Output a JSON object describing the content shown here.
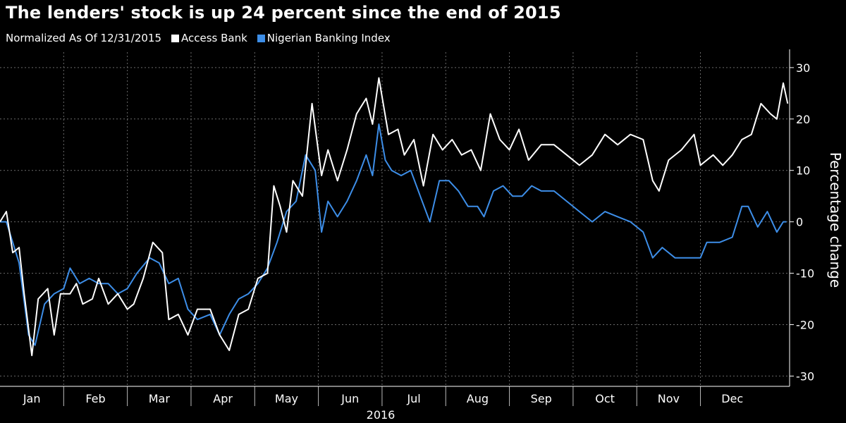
{
  "chart_data": {
    "type": "line",
    "title": "The lenders' stock is up 24 percent since the end of 2015",
    "subtitle": "Normalized As Of 12/31/2015",
    "ylabel": "Percentage change",
    "xlabel_year": "2016",
    "ylim": [
      -32,
      33
    ],
    "yticks": [
      30,
      20,
      10,
      0,
      -10,
      -20,
      -30
    ],
    "grid": true,
    "legend_position": "top-left",
    "x_unit": "month index (0 = Jan 1, 2016)",
    "months": [
      "Jan",
      "Feb",
      "Mar",
      "Apr",
      "May",
      "Jun",
      "Jul",
      "Aug",
      "Sep",
      "Oct",
      "Nov",
      "Dec"
    ],
    "series": [
      {
        "name": "Access Bank",
        "color": "#ffffff",
        "points": [
          [
            0,
            0
          ],
          [
            0.1,
            2
          ],
          [
            0.2,
            -6
          ],
          [
            0.3,
            -5
          ],
          [
            0.38,
            -14
          ],
          [
            0.5,
            -26
          ],
          [
            0.6,
            -15
          ],
          [
            0.75,
            -13
          ],
          [
            0.85,
            -22
          ],
          [
            0.95,
            -14
          ],
          [
            1.1,
            -14
          ],
          [
            1.2,
            -12
          ],
          [
            1.3,
            -16
          ],
          [
            1.45,
            -15
          ],
          [
            1.55,
            -11
          ],
          [
            1.7,
            -16
          ],
          [
            1.85,
            -14
          ],
          [
            2.0,
            -17
          ],
          [
            2.1,
            -16
          ],
          [
            2.25,
            -11
          ],
          [
            2.4,
            -4
          ],
          [
            2.55,
            -6
          ],
          [
            2.65,
            -19
          ],
          [
            2.8,
            -18
          ],
          [
            2.95,
            -22
          ],
          [
            3.1,
            -17
          ],
          [
            3.3,
            -17
          ],
          [
            3.45,
            -22
          ],
          [
            3.6,
            -25
          ],
          [
            3.75,
            -18
          ],
          [
            3.9,
            -17
          ],
          [
            4.05,
            -11
          ],
          [
            4.2,
            -10
          ],
          [
            4.3,
            7
          ],
          [
            4.4,
            3
          ],
          [
            4.5,
            -2
          ],
          [
            4.6,
            8
          ],
          [
            4.75,
            5
          ],
          [
            4.9,
            23
          ],
          [
            5.05,
            9
          ],
          [
            5.15,
            14
          ],
          [
            5.3,
            8
          ],
          [
            5.45,
            14
          ],
          [
            5.6,
            21
          ],
          [
            5.75,
            24
          ],
          [
            5.85,
            19
          ],
          [
            5.95,
            28
          ],
          [
            6.1,
            17
          ],
          [
            6.25,
            18
          ],
          [
            6.35,
            13
          ],
          [
            6.5,
            16
          ],
          [
            6.65,
            7
          ],
          [
            6.8,
            17
          ],
          [
            6.95,
            14
          ],
          [
            7.1,
            16
          ],
          [
            7.25,
            13
          ],
          [
            7.4,
            14
          ],
          [
            7.55,
            10
          ],
          [
            7.7,
            21
          ],
          [
            7.85,
            16
          ],
          [
            8.0,
            14
          ],
          [
            8.15,
            18
          ],
          [
            8.3,
            12
          ],
          [
            8.5,
            15
          ],
          [
            8.7,
            15
          ],
          [
            8.9,
            13
          ],
          [
            9.1,
            11
          ],
          [
            9.3,
            13
          ],
          [
            9.5,
            17
          ],
          [
            9.7,
            15
          ],
          [
            9.9,
            17
          ],
          [
            10.1,
            16
          ],
          [
            10.25,
            8
          ],
          [
            10.35,
            6
          ],
          [
            10.5,
            12
          ],
          [
            10.7,
            14
          ],
          [
            10.9,
            17
          ],
          [
            11.0,
            11
          ],
          [
            11.2,
            13
          ],
          [
            11.35,
            11
          ],
          [
            11.5,
            13
          ],
          [
            11.65,
            16
          ],
          [
            11.8,
            17
          ],
          [
            11.95,
            23
          ],
          [
            12.1,
            21
          ],
          [
            12.2,
            20
          ],
          [
            12.3,
            27
          ],
          [
            12.37,
            23
          ]
        ]
      },
      {
        "name": "Nigerian Banking Index",
        "color": "#3d8ee8",
        "points": [
          [
            0,
            0
          ],
          [
            0.1,
            0
          ],
          [
            0.3,
            -8
          ],
          [
            0.45,
            -22
          ],
          [
            0.55,
            -24
          ],
          [
            0.7,
            -16
          ],
          [
            0.85,
            -14
          ],
          [
            1.0,
            -13
          ],
          [
            1.1,
            -9
          ],
          [
            1.25,
            -12
          ],
          [
            1.4,
            -11
          ],
          [
            1.55,
            -12
          ],
          [
            1.7,
            -12
          ],
          [
            1.85,
            -14
          ],
          [
            2.0,
            -13
          ],
          [
            2.15,
            -10
          ],
          [
            2.35,
            -7
          ],
          [
            2.5,
            -8
          ],
          [
            2.65,
            -12
          ],
          [
            2.8,
            -11
          ],
          [
            2.95,
            -17
          ],
          [
            3.1,
            -19
          ],
          [
            3.3,
            -18
          ],
          [
            3.45,
            -22
          ],
          [
            3.6,
            -18
          ],
          [
            3.75,
            -15
          ],
          [
            3.9,
            -14
          ],
          [
            4.05,
            -12
          ],
          [
            4.2,
            -9
          ],
          [
            4.35,
            -4
          ],
          [
            4.5,
            2
          ],
          [
            4.65,
            4
          ],
          [
            4.8,
            13
          ],
          [
            4.95,
            10
          ],
          [
            5.05,
            -2
          ],
          [
            5.15,
            4
          ],
          [
            5.3,
            1
          ],
          [
            5.45,
            4
          ],
          [
            5.6,
            8
          ],
          [
            5.75,
            13
          ],
          [
            5.85,
            9
          ],
          [
            5.95,
            19
          ],
          [
            6.05,
            12
          ],
          [
            6.15,
            10
          ],
          [
            6.3,
            9
          ],
          [
            6.45,
            10
          ],
          [
            6.6,
            5
          ],
          [
            6.75,
            0
          ],
          [
            6.9,
            8
          ],
          [
            7.05,
            8
          ],
          [
            7.2,
            6
          ],
          [
            7.35,
            3
          ],
          [
            7.5,
            3
          ],
          [
            7.6,
            1
          ],
          [
            7.75,
            6
          ],
          [
            7.9,
            7
          ],
          [
            8.05,
            5
          ],
          [
            8.2,
            5
          ],
          [
            8.35,
            7
          ],
          [
            8.5,
            6
          ],
          [
            8.7,
            6
          ],
          [
            8.9,
            4
          ],
          [
            9.1,
            2
          ],
          [
            9.3,
            0
          ],
          [
            9.5,
            2
          ],
          [
            9.7,
            1
          ],
          [
            9.9,
            0
          ],
          [
            10.1,
            -2
          ],
          [
            10.25,
            -7
          ],
          [
            10.4,
            -5
          ],
          [
            10.6,
            -7
          ],
          [
            10.8,
            -7
          ],
          [
            11.0,
            -7
          ],
          [
            11.1,
            -4
          ],
          [
            11.3,
            -4
          ],
          [
            11.5,
            -3
          ],
          [
            11.65,
            3
          ],
          [
            11.75,
            3
          ],
          [
            11.9,
            -1
          ],
          [
            12.05,
            2
          ],
          [
            12.2,
            -2
          ],
          [
            12.3,
            0
          ],
          [
            12.35,
            0
          ]
        ]
      }
    ]
  }
}
